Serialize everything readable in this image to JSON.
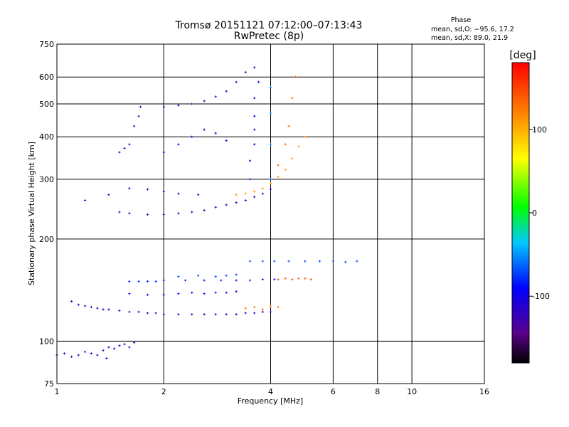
{
  "chart_data": {
    "type": "scatter",
    "title": "Tromsø 20151121 07:12:00–07:13:43",
    "subtitle": "RwPretec (8p)",
    "xlabel": "Frequency [MHz]",
    "ylabel": "Stationary phase Virtual Height [km]",
    "x_scale": "log",
    "y_scale": "log",
    "xlim": [
      1,
      16
    ],
    "ylim": [
      75,
      750
    ],
    "x_ticks": [
      1,
      2,
      4,
      6,
      8,
      10,
      16
    ],
    "y_ticks": [
      75,
      100,
      200,
      300,
      400,
      500,
      600,
      750
    ],
    "grid": true,
    "colorbar": {
      "label": "[deg]",
      "range": [
        -180,
        180
      ],
      "ticks": [
        100,
        0,
        -100
      ]
    },
    "phase_stats": {
      "heading": "Phase",
      "o_line": "mean, sd,O: −95.6, 17.2",
      "x_line": "mean, sd,X:  89.0, 21.9"
    },
    "series": [
      {
        "phase": -110,
        "points": [
          [
            1.0,
            91
          ],
          [
            1.05,
            92
          ],
          [
            1.1,
            90
          ],
          [
            1.15,
            91
          ],
          [
            1.2,
            93
          ],
          [
            1.25,
            92
          ],
          [
            1.3,
            91
          ],
          [
            1.35,
            94
          ],
          [
            1.38,
            89
          ],
          [
            1.4,
            96
          ],
          [
            1.45,
            95
          ],
          [
            1.5,
            97
          ],
          [
            1.55,
            98
          ],
          [
            1.6,
            96
          ],
          [
            1.65,
            99
          ]
        ]
      },
      {
        "phase": -115,
        "points": [
          [
            1.1,
            131
          ],
          [
            1.15,
            128
          ],
          [
            1.2,
            127
          ],
          [
            1.25,
            126
          ],
          [
            1.3,
            125
          ],
          [
            1.35,
            124
          ],
          [
            1.4,
            124
          ],
          [
            1.5,
            123
          ],
          [
            1.6,
            122
          ],
          [
            1.7,
            122
          ],
          [
            1.8,
            121
          ],
          [
            1.9,
            121
          ],
          [
            2.0,
            120
          ],
          [
            2.2,
            120
          ],
          [
            2.4,
            120
          ],
          [
            2.6,
            120
          ],
          [
            2.8,
            120
          ],
          [
            3.0,
            120
          ],
          [
            3.2,
            120
          ],
          [
            3.4,
            121
          ],
          [
            3.6,
            121
          ],
          [
            3.8,
            122
          ],
          [
            4.0,
            122
          ]
        ]
      },
      {
        "phase": -90,
        "points": [
          [
            1.6,
            138
          ],
          [
            1.8,
            137
          ],
          [
            2.0,
            137
          ],
          [
            2.2,
            138
          ],
          [
            2.4,
            139
          ],
          [
            2.6,
            138
          ],
          [
            2.8,
            139
          ],
          [
            3.0,
            139
          ],
          [
            3.2,
            140
          ]
        ]
      },
      {
        "phase": -80,
        "points": [
          [
            1.6,
            150
          ],
          [
            1.7,
            150
          ],
          [
            1.8,
            150
          ],
          [
            1.9,
            150
          ],
          [
            2.0,
            151
          ],
          [
            2.3,
            151
          ],
          [
            2.6,
            151
          ],
          [
            2.9,
            151
          ],
          [
            3.2,
            151
          ],
          [
            3.5,
            151
          ],
          [
            3.8,
            152
          ],
          [
            4.1,
            152
          ]
        ]
      },
      {
        "phase": 120,
        "points": [
          [
            3.4,
            125
          ],
          [
            3.6,
            126
          ],
          [
            3.8,
            124
          ],
          [
            4.0,
            127
          ],
          [
            4.2,
            126
          ]
        ]
      },
      {
        "phase": 140,
        "points": [
          [
            4.2,
            152
          ],
          [
            4.4,
            153
          ],
          [
            4.6,
            152
          ],
          [
            4.8,
            153
          ],
          [
            5.0,
            153
          ],
          [
            5.2,
            152
          ]
        ]
      },
      {
        "phase": -70,
        "points": [
          [
            2.2,
            155
          ],
          [
            2.5,
            156
          ],
          [
            2.8,
            155
          ],
          [
            3.0,
            156
          ],
          [
            3.2,
            157
          ],
          [
            3.5,
            172
          ],
          [
            3.8,
            172
          ],
          [
            4.1,
            172
          ],
          [
            4.5,
            172
          ],
          [
            5.0,
            172
          ],
          [
            5.5,
            172
          ],
          [
            6.0,
            172
          ],
          [
            6.5,
            171
          ],
          [
            7.0,
            172
          ]
        ]
      },
      {
        "phase": -120,
        "points": [
          [
            1.5,
            240
          ],
          [
            1.6,
            238
          ],
          [
            1.8,
            236
          ],
          [
            2.0,
            236
          ],
          [
            2.2,
            238
          ],
          [
            2.4,
            240
          ],
          [
            2.6,
            243
          ],
          [
            2.8,
            248
          ],
          [
            3.0,
            252
          ],
          [
            3.2,
            256
          ],
          [
            3.4,
            260
          ],
          [
            3.6,
            266
          ],
          [
            3.8,
            272
          ],
          [
            4.0,
            280
          ]
        ]
      },
      {
        "phase": -110,
        "points": [
          [
            1.2,
            260
          ],
          [
            1.4,
            270
          ],
          [
            1.6,
            282
          ],
          [
            1.8,
            280
          ],
          [
            2.0,
            276
          ],
          [
            2.2,
            272
          ],
          [
            2.5,
            270
          ]
        ]
      },
      {
        "phase": -105,
        "points": [
          [
            3.5,
            300
          ],
          [
            3.5,
            340
          ],
          [
            3.6,
            380
          ],
          [
            3.6,
            420
          ],
          [
            3.6,
            460
          ],
          [
            3.6,
            520
          ],
          [
            3.7,
            580
          ]
        ]
      },
      {
        "phase": -125,
        "points": [
          [
            1.5,
            360
          ],
          [
            1.55,
            370
          ],
          [
            1.6,
            380
          ],
          [
            1.65,
            430
          ],
          [
            1.7,
            460
          ],
          [
            1.72,
            490
          ]
        ]
      },
      {
        "phase": -120,
        "points": [
          [
            2.0,
            490
          ],
          [
            2.2,
            495
          ],
          [
            2.4,
            500
          ],
          [
            2.6,
            510
          ],
          [
            2.8,
            525
          ],
          [
            3.0,
            545
          ],
          [
            3.2,
            580
          ],
          [
            3.4,
            620
          ],
          [
            3.6,
            640
          ]
        ]
      },
      {
        "phase": -100,
        "points": [
          [
            2.0,
            360
          ],
          [
            2.2,
            380
          ],
          [
            2.4,
            400
          ],
          [
            2.6,
            420
          ],
          [
            2.8,
            410
          ],
          [
            3.0,
            390
          ]
        ]
      },
      {
        "phase": 110,
        "points": [
          [
            3.2,
            270
          ],
          [
            3.4,
            272
          ],
          [
            3.6,
            276
          ],
          [
            3.8,
            282
          ],
          [
            4.0,
            292
          ],
          [
            4.2,
            305
          ],
          [
            4.4,
            320
          ],
          [
            4.6,
            345
          ],
          [
            4.8,
            375
          ],
          [
            5.0,
            400
          ]
        ]
      },
      {
        "phase": 130,
        "points": [
          [
            4.2,
            330
          ],
          [
            4.4,
            380
          ],
          [
            4.5,
            430
          ],
          [
            4.6,
            520
          ],
          [
            4.7,
            600
          ]
        ]
      },
      {
        "phase": -60,
        "points": [
          [
            4.0,
            300
          ],
          [
            4.0,
            380
          ],
          [
            4.0,
            470
          ],
          [
            4.0,
            560
          ]
        ]
      }
    ]
  }
}
